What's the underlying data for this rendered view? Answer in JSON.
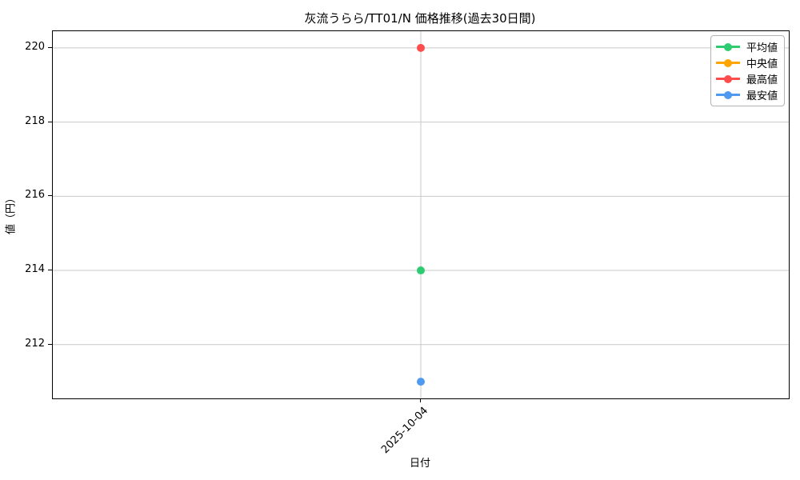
{
  "chart_data": {
    "type": "line",
    "title": "灰流うらら/TT01/N 価格推移(過去30日間)",
    "xlabel": "日付",
    "ylabel": "値（円）",
    "x_categories": [
      "2025-10-04"
    ],
    "series": [
      {
        "name": "平均値",
        "color": "#2ecc71",
        "values": [
          214
        ]
      },
      {
        "name": "中央値",
        "color": "#ffa502",
        "values": [
          null
        ]
      },
      {
        "name": "最高値",
        "color": "#ff4d4d",
        "values": [
          220
        ]
      },
      {
        "name": "最安値",
        "color": "#4d9af0",
        "values": [
          211
        ]
      }
    ],
    "yticks": [
      212,
      214,
      216,
      218,
      220
    ],
    "ylim": [
      210.55,
      220.45
    ],
    "grid": true,
    "grid_color": "#c9c9c9",
    "spine_color": "#000000",
    "legend_position": "upper right",
    "marker": "circle",
    "marker_radius": 5
  }
}
